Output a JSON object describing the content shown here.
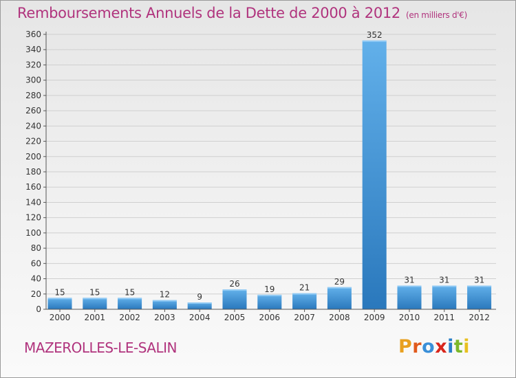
{
  "header": {
    "title": "Remboursements Annuels de la Dette de 2000 à 2012",
    "unit": "(en milliers d'€)"
  },
  "footer": {
    "place": "MAZEROLLES-LE-SALIN",
    "logo": "Proxiti",
    "logo_colors": [
      "#e8a020",
      "#e05a1c",
      "#3a8fd8",
      "#d8261c",
      "#2a7fc8",
      "#7cb82a",
      "#e8c020"
    ]
  },
  "colors": {
    "bar_top": "#62b0ea",
    "bar_bottom": "#2a78bc",
    "axis": "#555555",
    "grid": "#cfcfcf",
    "text": "#333333"
  },
  "chart_data": {
    "type": "bar",
    "title": "Remboursements Annuels de la Dette de 2000 à 2012",
    "categories": [
      "2000",
      "2001",
      "2002",
      "2003",
      "2004",
      "2005",
      "2006",
      "2007",
      "2008",
      "2009",
      "2010",
      "2011",
      "2012"
    ],
    "values": [
      15,
      15,
      15,
      12,
      9,
      26,
      19,
      21,
      29,
      352,
      31,
      31,
      31
    ],
    "data_labels": [
      "15",
      "15",
      "15",
      "12",
      "9",
      "26",
      "19",
      "21",
      "29",
      "352",
      "31",
      "31",
      "31"
    ],
    "yticks": [
      0,
      20,
      40,
      60,
      80,
      100,
      120,
      140,
      160,
      180,
      200,
      220,
      240,
      260,
      280,
      300,
      320,
      340,
      360
    ],
    "ylim": [
      0,
      360
    ],
    "xlabel": "",
    "ylabel": "",
    "grid": true
  }
}
